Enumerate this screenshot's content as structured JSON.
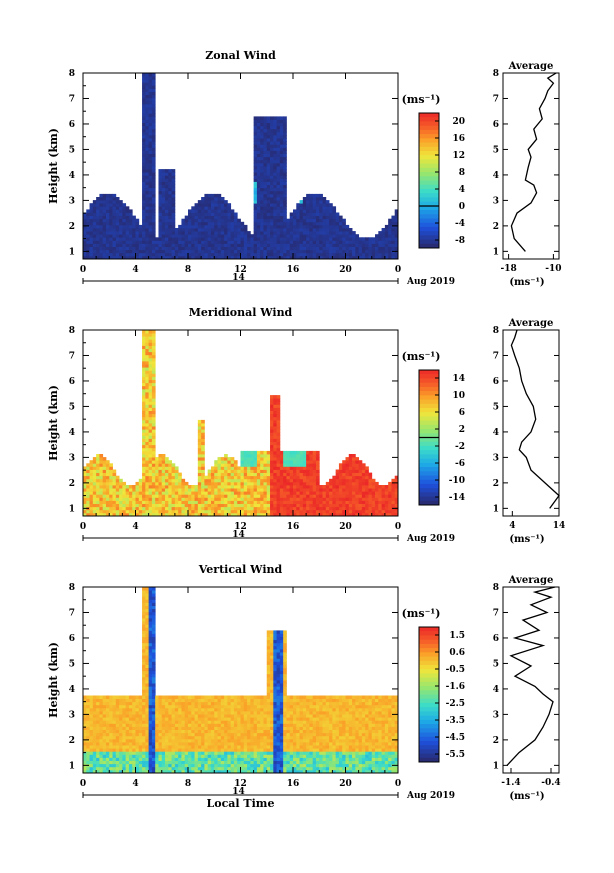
{
  "figure": {
    "date_label": "Aug 2019",
    "day_label": "14",
    "x_axis_label": "Local Time",
    "average_title": "Average",
    "unit_label": "(ms⁻¹)"
  },
  "chart_data": [
    {
      "type": "heatmap",
      "title": "Zonal Wind",
      "ylabel": "Height (km)",
      "xlabel": "",
      "x_ticks": [
        "0",
        "4",
        "8",
        "12",
        "16",
        "20",
        "0"
      ],
      "xlim": [
        0,
        24
      ],
      "ylim": [
        0.7,
        8
      ],
      "y_ticks": [
        "1",
        "2",
        "3",
        "4",
        "5",
        "6",
        "7",
        "8"
      ],
      "colorbar": {
        "label": "(ms⁻¹)",
        "ticks": [
          "20",
          "16",
          "12",
          "8",
          "4",
          "0",
          "-4",
          "-8"
        ],
        "range": [
          -10,
          22
        ]
      },
      "average": {
        "x_ticks": [
          "-18",
          "-10"
        ],
        "xlim": [
          -19,
          -9
        ],
        "xlabel": "(ms⁻¹)",
        "profile": [
          [
            -15,
            1.0
          ],
          [
            -17,
            1.5
          ],
          [
            -17.5,
            2.0
          ],
          [
            -16.5,
            2.5
          ],
          [
            -14,
            2.9
          ],
          [
            -13,
            3.3
          ],
          [
            -13.5,
            3.6
          ],
          [
            -15,
            3.8
          ],
          [
            -14.5,
            4.3
          ],
          [
            -14,
            4.7
          ],
          [
            -14.5,
            5.0
          ],
          [
            -13,
            5.4
          ],
          [
            -13.5,
            5.8
          ],
          [
            -12,
            6.2
          ],
          [
            -12.5,
            6.6
          ],
          [
            -11.5,
            7.0
          ],
          [
            -11,
            7.3
          ],
          [
            -10,
            7.6
          ],
          [
            -11,
            7.8
          ],
          [
            -9.5,
            8.0
          ]
        ]
      }
    },
    {
      "type": "heatmap",
      "title": "Meridional Wind",
      "ylabel": "Height (km)",
      "xlabel": "",
      "x_ticks": [
        "0",
        "4",
        "8",
        "12",
        "16",
        "20",
        "0"
      ],
      "xlim": [
        0,
        24
      ],
      "ylim": [
        0.7,
        8
      ],
      "y_ticks": [
        "1",
        "2",
        "3",
        "4",
        "5",
        "6",
        "7",
        "8"
      ],
      "colorbar": {
        "label": "(ms⁻¹)",
        "ticks": [
          "14",
          "10",
          "6",
          "2",
          "-2",
          "-6",
          "-10",
          "-14"
        ],
        "range": [
          -16,
          16
        ]
      },
      "average": {
        "x_ticks": [
          "4",
          "14"
        ],
        "xlim": [
          2,
          14
        ],
        "xlabel": "(ms⁻¹)",
        "profile": [
          [
            12,
            1.0
          ],
          [
            14,
            1.5
          ],
          [
            11,
            2.0
          ],
          [
            8,
            2.5
          ],
          [
            7,
            3.0
          ],
          [
            5.5,
            3.3
          ],
          [
            6,
            3.6
          ],
          [
            8,
            4.0
          ],
          [
            9,
            4.5
          ],
          [
            8.5,
            5.0
          ],
          [
            7,
            5.5
          ],
          [
            6,
            6.0
          ],
          [
            5.5,
            6.5
          ],
          [
            4.5,
            7.0
          ],
          [
            3.8,
            7.4
          ],
          [
            4.5,
            7.7
          ],
          [
            5,
            8.0
          ]
        ]
      }
    },
    {
      "type": "heatmap",
      "title": "Vertical Wind",
      "ylabel": "Height (km)",
      "xlabel": "Local Time",
      "x_ticks": [
        "0",
        "4",
        "8",
        "12",
        "16",
        "20",
        "0"
      ],
      "xlim": [
        0,
        24
      ],
      "ylim": [
        0.7,
        8
      ],
      "y_ticks": [
        "1",
        "2",
        "3",
        "4",
        "5",
        "6",
        "7",
        "8"
      ],
      "colorbar": {
        "label": "(ms⁻¹)",
        "ticks": [
          "1.5",
          "0.6",
          "-0.5",
          "-1.6",
          "-2.5",
          "-3.5",
          "-4.5",
          "-5.5"
        ],
        "range": [
          -6,
          2
        ]
      },
      "average": {
        "x_ticks": [
          "-1.4",
          "-0.4"
        ],
        "xlim": [
          -1.6,
          -0.2
        ],
        "xlabel": "(ms⁻¹)",
        "profile": [
          [
            -1.5,
            1.0
          ],
          [
            -1.2,
            1.5
          ],
          [
            -0.8,
            2.0
          ],
          [
            -0.6,
            2.5
          ],
          [
            -0.45,
            3.0
          ],
          [
            -0.35,
            3.5
          ],
          [
            -0.6,
            3.8
          ],
          [
            -0.8,
            4.1
          ],
          [
            -1.3,
            4.5
          ],
          [
            -0.9,
            4.9
          ],
          [
            -1.4,
            5.3
          ],
          [
            -0.6,
            5.7
          ],
          [
            -1.3,
            6.0
          ],
          [
            -0.7,
            6.3
          ],
          [
            -1.1,
            6.7
          ],
          [
            -0.5,
            7.0
          ],
          [
            -0.9,
            7.3
          ],
          [
            -0.4,
            7.6
          ],
          [
            -0.8,
            7.8
          ],
          [
            -0.3,
            8.0
          ]
        ]
      }
    }
  ]
}
